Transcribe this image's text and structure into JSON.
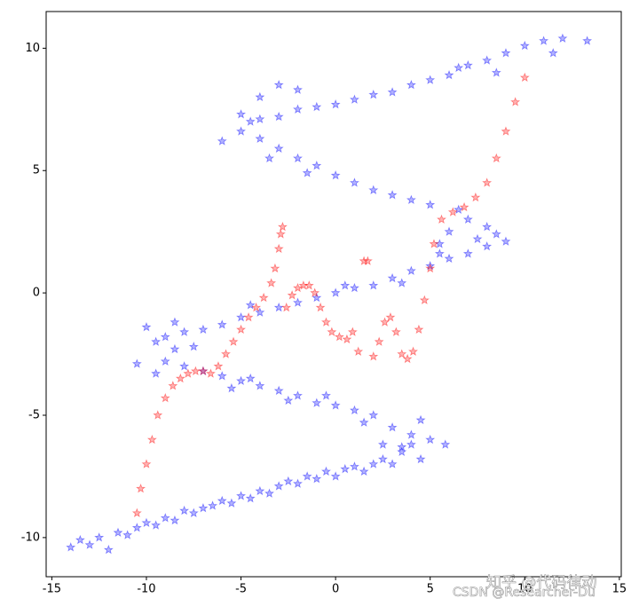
{
  "chart_data": {
    "type": "scatter",
    "xlim": [
      -15.3,
      15.1
    ],
    "ylim": [
      -11.6,
      11.5
    ],
    "xticks": [
      -15,
      -10,
      -5,
      0,
      5,
      10,
      15
    ],
    "yticks": [
      -10,
      -5,
      0,
      5,
      10
    ],
    "series": [
      {
        "color": "#0000ff",
        "x": [
          -14,
          -13.5,
          -13,
          -12.5,
          -12,
          -11.5,
          -11,
          -10.5,
          -10,
          -9.5,
          -9,
          -8.5,
          -8,
          -7.5,
          -7,
          -6.5,
          -6,
          -5.5,
          -5,
          -4.5,
          -4,
          -3.5,
          -3,
          -2.5,
          -2,
          -1.5,
          -1,
          -0.5,
          0,
          0.5,
          1,
          1.5,
          2,
          2.5,
          3,
          3.5,
          4,
          4.5,
          5,
          5.8,
          3,
          4,
          4.5,
          3.5,
          2.5,
          2,
          1,
          0,
          -1,
          -2,
          -3,
          -4,
          -5,
          -6,
          -7,
          1.5,
          -0.5,
          -2.5,
          -4.5,
          -5.5,
          -10,
          -9.5,
          -9,
          -8.5,
          -8,
          -7.5,
          -9,
          -8,
          -10.5,
          -9.5,
          -8.5,
          -7,
          -6,
          -5,
          -4,
          -3,
          -2,
          -1,
          0,
          1,
          2,
          3,
          4,
          5,
          6,
          7,
          8,
          9,
          -4.5,
          0.5,
          3.5,
          5.5,
          6,
          7,
          7.5,
          8,
          6.5,
          5.5,
          8.5,
          5,
          4,
          3,
          2,
          1,
          0,
          -1,
          -2,
          -3,
          -4,
          -5,
          -6,
          -1.5,
          -3.5,
          -4.5,
          -5,
          -4,
          -3,
          -2,
          -1,
          0,
          1,
          2,
          3,
          4,
          5,
          6,
          7,
          8,
          9,
          10,
          11,
          12,
          13.3,
          11.5,
          8.5,
          6.5,
          -4,
          -3,
          -2
        ],
        "values": [
          -10.4,
          -10.1,
          -10.3,
          -10,
          -10.5,
          -9.8,
          -9.9,
          -9.6,
          -9.4,
          -9.5,
          -9.2,
          -9.3,
          -8.9,
          -9,
          -8.8,
          -8.7,
          -8.5,
          -8.6,
          -8.3,
          -8.4,
          -8.1,
          -8.2,
          -7.9,
          -7.7,
          -7.8,
          -7.5,
          -7.6,
          -7.3,
          -7.5,
          -7.2,
          -7.1,
          -7.3,
          -7,
          -6.8,
          -7,
          -6.5,
          -6.2,
          -6.8,
          -6,
          -6.2,
          -5.5,
          -5.8,
          -5.2,
          -6.3,
          -6.2,
          -5,
          -4.8,
          -4.6,
          -4.5,
          -4.2,
          -4,
          -3.8,
          -3.6,
          -3.4,
          -3.2,
          -5.3,
          -4.2,
          -4.4,
          -3.5,
          -3.9,
          -1.4,
          -2,
          -1.8,
          -2.3,
          -1.6,
          -2.2,
          -2.8,
          -3,
          -2.9,
          -3.3,
          -1.2,
          -1.5,
          -1.3,
          -1,
          -0.8,
          -0.6,
          -0.4,
          -0.2,
          0,
          0.2,
          0.3,
          0.6,
          0.9,
          1.1,
          1.4,
          1.6,
          1.9,
          2.1,
          -0.5,
          0.3,
          0.4,
          1.6,
          2.5,
          3,
          2.2,
          2.7,
          3.4,
          2,
          2.4,
          3.6,
          3.8,
          4,
          4.2,
          4.5,
          4.8,
          5.2,
          5.5,
          5.9,
          6.3,
          6.6,
          6.2,
          4.9,
          5.5,
          7,
          7.3,
          7.1,
          7.2,
          7.5,
          7.6,
          7.7,
          7.9,
          8.1,
          8.2,
          8.5,
          8.7,
          8.9,
          9.3,
          9.5,
          9.8,
          10.1,
          10.3,
          10.4,
          10.3,
          9.8,
          9,
          9.2,
          8,
          8.5,
          8.3
        ]
      },
      {
        "color": "#ff0000",
        "x": [
          -10.5,
          -10.3,
          -10,
          -9.7,
          -9.4,
          -9,
          -8.6,
          -8.2,
          -7.8,
          -7.4,
          -7,
          -6.6,
          -6.2,
          -5.8,
          -5.4,
          -5,
          -4.6,
          -4.2,
          -3.8,
          -3.4,
          -3.2,
          -3,
          -2.9,
          -2.8,
          -2.6,
          -2.3,
          -2,
          -1.7,
          -1.4,
          -1.1,
          -0.8,
          -0.5,
          -0.2,
          0.2,
          0.6,
          0.9,
          1.2,
          1.5,
          1.7,
          2,
          2.3,
          2.6,
          2.9,
          3.2,
          3.5,
          3.8,
          4.1,
          4.4,
          4.7,
          5,
          5.2,
          5.6,
          6.2,
          6.8,
          7.4,
          8,
          8.5,
          9,
          9.5,
          10
        ],
        "values": [
          -9,
          -8,
          -7,
          -6,
          -5,
          -4.3,
          -3.8,
          -3.5,
          -3.3,
          -3.2,
          -3.2,
          -3.3,
          -3,
          -2.5,
          -2,
          -1.5,
          -1,
          -0.6,
          -0.2,
          0.4,
          1,
          1.8,
          2.4,
          2.7,
          -0.6,
          -0.1,
          0.2,
          0.3,
          0.3,
          0,
          -0.6,
          -1.2,
          -1.6,
          -1.8,
          -1.9,
          -1.6,
          -2.4,
          1.3,
          1.3,
          -2.6,
          -2,
          -1.2,
          -1,
          -1.6,
          -2.5,
          -2.7,
          -2.4,
          -1.5,
          -0.3,
          1,
          2,
          3,
          3.3,
          3.5,
          3.9,
          4.5,
          5.5,
          6.6,
          7.8,
          8.8
        ]
      }
    ]
  },
  "watermarks": [
    "知乎 @代码律动",
    "CSDN @Researcher-Du"
  ]
}
